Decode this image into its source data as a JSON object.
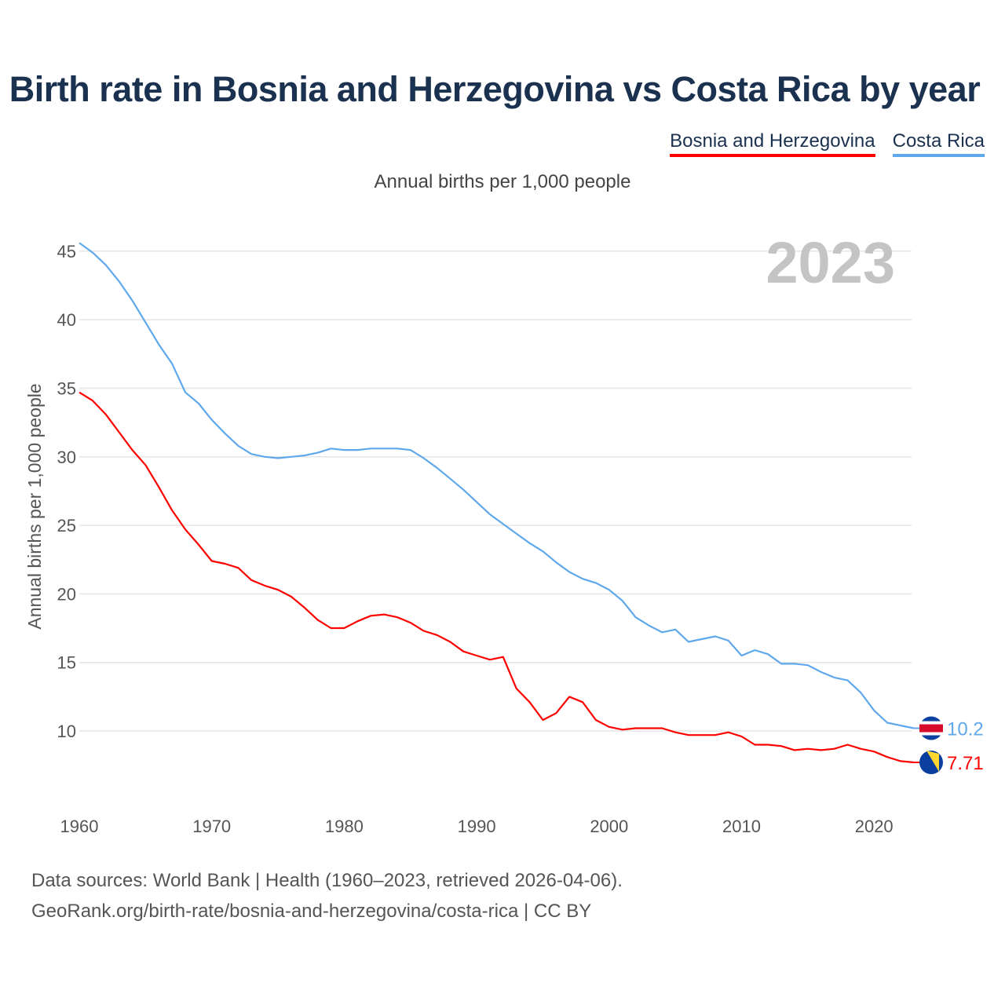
{
  "title": "Birth rate in Bosnia and Herzegovina vs Costa Rica by year",
  "subtitle": "Annual births per 1,000 people",
  "footer": {
    "line1": "Data sources: World Bank | Health (1960–2023, retrieved 2026-04-06).",
    "line2": "GeoRank.org/birth-rate/bosnia-and-herzegovina/costa-rica | CC BY"
  },
  "chart_data": {
    "type": "line",
    "title": "Birth rate in Bosnia and Herzegovina vs Costa Rica by year",
    "xlabel": "",
    "ylabel": "Annual births per 1,000 people",
    "year_label": "2023",
    "xlim": [
      1960,
      2023
    ],
    "ylim": [
      5,
      46
    ],
    "yticks": [
      10,
      15,
      20,
      25,
      30,
      35,
      40,
      45
    ],
    "xticks": [
      1960,
      1970,
      1980,
      1990,
      2000,
      2010,
      2020
    ],
    "grid": true,
    "legend": "top-right",
    "x_start": 1960,
    "series": [
      {
        "name": "Bosnia and Herzegovina",
        "color": "#ff0000",
        "end_label": "7.71",
        "values": [
          34.7,
          34.1,
          33.1,
          31.8,
          30.5,
          29.4,
          27.8,
          26.1,
          24.7,
          23.6,
          22.4,
          22.2,
          21.9,
          21.0,
          20.6,
          20.3,
          19.8,
          19.0,
          18.1,
          17.5,
          17.5,
          18.0,
          18.4,
          18.5,
          18.3,
          17.9,
          17.3,
          17.0,
          16.5,
          15.8,
          15.5,
          15.2,
          15.4,
          13.1,
          12.1,
          10.8,
          11.3,
          12.5,
          12.1,
          10.8,
          10.3,
          10.1,
          10.2,
          10.2,
          10.2,
          9.9,
          9.7,
          9.7,
          9.7,
          9.9,
          9.6,
          9.0,
          9.0,
          8.9,
          8.6,
          8.7,
          8.6,
          8.7,
          9.0,
          8.7,
          8.5,
          8.1,
          7.8,
          7.71
        ]
      },
      {
        "name": "Costa Rica",
        "color": "#5fa8ec",
        "end_label": "10.2",
        "values": [
          45.6,
          44.9,
          44.0,
          42.8,
          41.4,
          39.8,
          38.2,
          36.8,
          34.7,
          33.9,
          32.7,
          31.7,
          30.8,
          30.2,
          30.0,
          29.9,
          30.0,
          30.1,
          30.3,
          30.6,
          30.5,
          30.5,
          30.6,
          30.6,
          30.6,
          30.5,
          29.9,
          29.2,
          28.4,
          27.6,
          26.7,
          25.8,
          25.1,
          24.4,
          23.7,
          23.1,
          22.3,
          21.6,
          21.1,
          20.8,
          20.3,
          19.5,
          18.3,
          17.7,
          17.2,
          17.4,
          16.5,
          16.7,
          16.9,
          16.6,
          15.5,
          15.9,
          15.6,
          14.9,
          14.9,
          14.8,
          14.3,
          13.9,
          13.7,
          12.8,
          11.5,
          10.6,
          10.4,
          10.2
        ]
      }
    ]
  }
}
